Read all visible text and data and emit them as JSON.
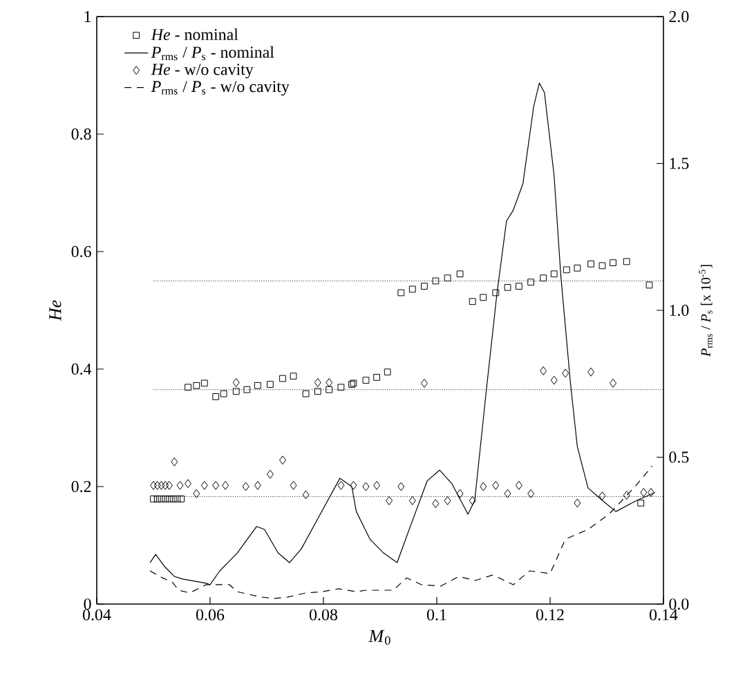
{
  "chart_data": {
    "type": "scatter",
    "xlabel": "*M*$_{0}$",
    "ylabel": "*He*",
    "y2label": "*P*$_{rms}$ / *P*$_{s}$ [x 10$^{-5}$]",
    "xlim": [
      0.04,
      0.14
    ],
    "xticks": [
      0.04,
      0.06,
      0.08,
      0.1,
      0.12,
      0.14
    ],
    "ylim": [
      0,
      1
    ],
    "yticks": [
      0,
      0.2,
      0.4,
      0.6,
      0.8,
      1
    ],
    "y2lim": [
      0,
      2
    ],
    "y2ticks": [
      {
        "value": 0,
        "label": "0.0"
      },
      {
        "value": 0.5,
        "label": "0.5"
      },
      {
        "value": 1,
        "label": "1.0"
      },
      {
        "value": 1.5,
        "label": "1.5"
      },
      {
        "value": 2,
        "label": "2.0"
      }
    ],
    "legend": "top left",
    "series": [
      {
        "name": "*He* - nominal",
        "marker": "square",
        "color": "#000000",
        "x": [
          0.05,
          0.0507,
          0.0514,
          0.0521,
          0.0528,
          0.0535,
          0.0542,
          0.0549,
          0.0561,
          0.0576,
          0.059,
          0.061,
          0.0624,
          0.0646,
          0.0665,
          0.0684,
          0.0706,
          0.0728,
          0.0747,
          0.0769,
          0.079,
          0.081,
          0.0831,
          0.085,
          0.0853,
          0.0875,
          0.0894,
          0.0913,
          0.0937,
          0.0957,
          0.0978,
          0.0998,
          0.1019,
          0.1041,
          0.1063,
          0.1082,
          0.1104,
          0.1125,
          0.1145,
          0.1166,
          0.1188,
          0.1207,
          0.1229,
          0.1248,
          0.1272,
          0.1292,
          0.1311,
          0.1335,
          0.136,
          0.1375
        ],
        "values": [
          0.179,
          0.179,
          0.179,
          0.179,
          0.179,
          0.179,
          0.179,
          0.179,
          0.369,
          0.372,
          0.376,
          0.353,
          0.358,
          0.362,
          0.365,
          0.372,
          0.374,
          0.384,
          0.388,
          0.358,
          0.362,
          0.365,
          0.369,
          0.374,
          0.376,
          0.381,
          0.386,
          0.395,
          0.53,
          0.536,
          0.541,
          0.55,
          0.555,
          0.562,
          0.515,
          0.522,
          0.53,
          0.539,
          0.541,
          0.548,
          0.555,
          0.562,
          0.569,
          0.572,
          0.579,
          0.576,
          0.581,
          0.583,
          0.172,
          0.543
        ]
      },
      {
        "name": "*P*$_{rms}$ / *P*$_{s}$ - nominal",
        "type": "line",
        "line_style": "solid",
        "axis": "y2",
        "color": "#000000",
        "x": [
          0.0494,
          0.0504,
          0.052,
          0.0537,
          0.0552,
          0.0593,
          0.06,
          0.0617,
          0.0634,
          0.0648,
          0.0682,
          0.0696,
          0.072,
          0.074,
          0.0761,
          0.0793,
          0.0829,
          0.085,
          0.0858,
          0.0882,
          0.0906,
          0.093,
          0.0954,
          0.0983,
          0.1005,
          0.1027,
          0.1055,
          0.1067,
          0.1087,
          0.1106,
          0.1123,
          0.1135,
          0.1152,
          0.1171,
          0.1181,
          0.119,
          0.1207,
          0.1219,
          0.1236,
          0.1248,
          0.1267,
          0.1292,
          0.1316,
          0.135,
          0.1385
        ],
        "values": [
          0.141,
          0.169,
          0.127,
          0.094,
          0.085,
          0.071,
          0.066,
          0.113,
          0.146,
          0.174,
          0.264,
          0.254,
          0.174,
          0.141,
          0.188,
          0.301,
          0.428,
          0.4,
          0.315,
          0.221,
          0.174,
          0.141,
          0.268,
          0.419,
          0.456,
          0.409,
          0.306,
          0.353,
          0.72,
          1.054,
          1.304,
          1.341,
          1.431,
          1.694,
          1.774,
          1.741,
          1.459,
          1.115,
          0.75,
          0.536,
          0.395,
          0.353,
          0.315,
          0.35,
          0.38
        ]
      },
      {
        "name": "*He* - w/o cavity",
        "marker": "diamond",
        "color": "#000000",
        "x": [
          0.05,
          0.0507,
          0.0514,
          0.0521,
          0.0528,
          0.0537,
          0.0547,
          0.0561,
          0.0576,
          0.059,
          0.061,
          0.0627,
          0.0646,
          0.0663,
          0.0684,
          0.0706,
          0.0728,
          0.0747,
          0.0769,
          0.079,
          0.081,
          0.0831,
          0.0853,
          0.0875,
          0.0894,
          0.0916,
          0.0937,
          0.0957,
          0.0978,
          0.0998,
          0.1019,
          0.1041,
          0.1063,
          0.1082,
          0.1104,
          0.1125,
          0.1145,
          0.1166,
          0.1188,
          0.1207,
          0.1227,
          0.1248,
          0.1272,
          0.1292,
          0.1311,
          0.1335,
          0.1365,
          0.1378
        ],
        "values": [
          0.202,
          0.202,
          0.202,
          0.202,
          0.202,
          0.242,
          0.202,
          0.205,
          0.188,
          0.202,
          0.202,
          0.202,
          0.377,
          0.2,
          0.202,
          0.221,
          0.245,
          0.202,
          0.186,
          0.377,
          0.377,
          0.202,
          0.202,
          0.2,
          0.202,
          0.176,
          0.2,
          0.176,
          0.376,
          0.171,
          0.176,
          0.188,
          0.176,
          0.2,
          0.202,
          0.188,
          0.202,
          0.188,
          0.397,
          0.381,
          0.393,
          0.172,
          0.395,
          0.184,
          0.376,
          0.185,
          0.19,
          0.19
        ]
      },
      {
        "name": "*P*$_{rms}$ / *P*$_{s}$ - w/o cavity",
        "type": "line",
        "line_style": "dashed",
        "axis": "y2",
        "color": "#000000",
        "x": [
          0.0494,
          0.0516,
          0.0533,
          0.0545,
          0.0564,
          0.0593,
          0.0634,
          0.0648,
          0.0689,
          0.0713,
          0.0737,
          0.0769,
          0.0798,
          0.0827,
          0.0858,
          0.0875,
          0.0923,
          0.0947,
          0.0973,
          0.1007,
          0.1039,
          0.1067,
          0.1099,
          0.1135,
          0.1164,
          0.12,
          0.1227,
          0.1267,
          0.1304,
          0.135,
          0.138
        ],
        "values": [
          0.113,
          0.089,
          0.075,
          0.047,
          0.038,
          0.066,
          0.066,
          0.042,
          0.024,
          0.019,
          0.024,
          0.038,
          0.042,
          0.052,
          0.042,
          0.047,
          0.047,
          0.089,
          0.066,
          0.061,
          0.094,
          0.08,
          0.099,
          0.066,
          0.113,
          0.104,
          0.221,
          0.254,
          0.306,
          0.4,
          0.47
        ]
      },
      {
        "type": "line",
        "line_style": "dotted",
        "color": "#000000",
        "x": [
          0.05,
          0.14
        ],
        "values": [
          0.55,
          0.55
        ]
      },
      {
        "type": "line",
        "line_style": "dotted",
        "color": "#000000",
        "x": [
          0.05,
          0.14
        ],
        "values": [
          0.365,
          0.365
        ]
      },
      {
        "type": "line",
        "line_style": "dotted",
        "color": "#000000",
        "x": [
          0.05,
          0.14
        ],
        "values": [
          0.183,
          0.183
        ]
      }
    ]
  }
}
